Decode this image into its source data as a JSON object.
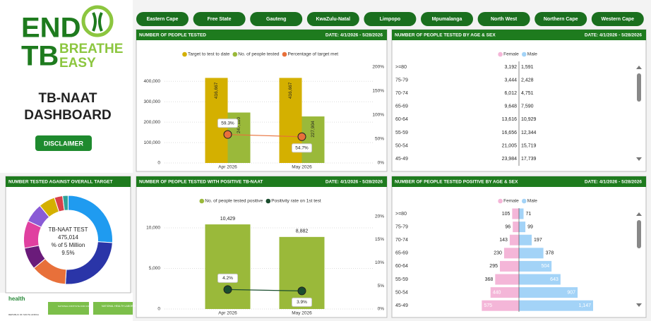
{
  "logo": {
    "line1": "END",
    "line2": "TB",
    "tag1": "BREATHE",
    "tag2": "EASY"
  },
  "dashboard_title": [
    "TB-NAAT",
    "DASHBOARD"
  ],
  "disclaimer": "DISCLAIMER",
  "provinces": [
    "Eastern Cape",
    "Free State",
    "Gauteng",
    "KwaZulu-Natal",
    "Limpopo",
    "Mpumalanga",
    "North West",
    "Northern Cape",
    "Western Cape"
  ],
  "footer_logos": [
    "health",
    "REPUBLIC OF SOUTH AFRICA",
    "NATIONAL INSTITUTE FOR COMMUNICABLE DISEASES",
    "NATIONAL HEALTH LABORATORY SERVICE"
  ],
  "chart_data": [
    {
      "type": "combo",
      "title": "NUMBER OF PEOPLE TESTED",
      "date": "DATE: 4/1/2026 - 5/28/2026",
      "categories": [
        "Apr 2026",
        "May 2026"
      ],
      "series": [
        {
          "name": "Target to test to date",
          "color": "#d4b000",
          "values": [
            416667,
            416667
          ],
          "value_labels": [
            "416,667",
            "416,667"
          ]
        },
        {
          "name": "No. of people tested",
          "color": "#9ab93a",
          "values": [
            247110,
            227904
          ],
          "value_labels": [
            "247,110",
            "227,904"
          ]
        },
        {
          "name": "Percentage of target met",
          "color": "#e8703a",
          "axis": "y2",
          "values": [
            59.3,
            54.7
          ],
          "value_labels": [
            "59.3%",
            "54.7%"
          ]
        }
      ],
      "ylim": [
        0,
        470000
      ],
      "yticks": [
        0,
        {
          "value": 100000,
          "label": "100,000"
        },
        {
          "value": 200000,
          "label": "200,000"
        },
        {
          "value": 300000,
          "label": "300,000"
        },
        {
          "value": 400000,
          "label": "400,000"
        }
      ],
      "y2lim": [
        0,
        200
      ],
      "y2ticks": [
        {
          "value": 0,
          "label": "0%"
        },
        {
          "value": 50,
          "label": "50%"
        },
        {
          "value": 100,
          "label": "100%"
        },
        {
          "value": 150,
          "label": "150%"
        },
        {
          "value": 200,
          "label": "200%"
        }
      ],
      "grid": true
    },
    {
      "type": "pyramid",
      "title": "NUMBER OF PEOPLE TESTED BY AGE & SEX",
      "date": "DATE: 4/1/2026 - 5/28/2026",
      "categories": [
        ">=80",
        "75-79",
        "70-74",
        "65-69",
        "60-64",
        "55-59",
        "50-54",
        "45-49"
      ],
      "series": [
        {
          "name": "Female",
          "color": "#f4b6d8",
          "values": [
            3192,
            3444,
            6012,
            9648,
            13616,
            16656,
            21005,
            23984
          ],
          "value_labels": [
            "3,192",
            "3,444",
            "6,012",
            "9,648",
            "13,616",
            "16,656",
            "21,005",
            "23,984"
          ]
        },
        {
          "name": "Male",
          "color": "#a3d3f7",
          "values": [
            1591,
            2428,
            4751,
            7590,
            10929,
            12344,
            15719,
            17739
          ],
          "value_labels": [
            "1,591",
            "2,428",
            "4,751",
            "7,590",
            "10,929",
            "12,344",
            "15,719",
            "17,739"
          ]
        }
      ]
    },
    {
      "type": "donut",
      "title": "NUMBER TESTED AGAINST OVERALL TARGET",
      "categories": [
        null,
        null,
        null,
        null,
        null,
        null,
        null,
        null,
        null
      ],
      "values": [
        26,
        25,
        13,
        8,
        10,
        7,
        6,
        3,
        2
      ],
      "colors": [
        "#1f9bf0",
        "#2a35a8",
        "#e8703a",
        "#6a1b7a",
        "#e040a0",
        "#8a5bd6",
        "#d4b000",
        "#d9404a",
        "#2fa39a"
      ],
      "center_labels": [
        "TB-NAAT TEST",
        "475,014",
        "% of 5 Million",
        "9.5%"
      ]
    },
    {
      "type": "combo",
      "title": "NUMBER OF PEOPLE TESTED WITH POSITIVE TB-NAAT",
      "date": "DATE: 4/1/2026 - 5/28/2026",
      "categories": [
        "Apr 2026",
        "May 2026"
      ],
      "series": [
        {
          "name": "No. of people tested positive",
          "color": "#9ab93a",
          "values": [
            10429,
            8882
          ],
          "value_labels": [
            "10,429",
            "8,882"
          ]
        },
        {
          "name": "Positivity rate on 1st test",
          "color": "#1a4d2e",
          "axis": "y2",
          "values": [
            4.2,
            3.9
          ],
          "value_labels": [
            "4.2%",
            "3.9%"
          ]
        }
      ],
      "ylim": [
        0,
        12000
      ],
      "yticks": [
        0,
        {
          "value": 5000,
          "label": "5,000"
        },
        {
          "value": 10000,
          "label": "10,000"
        }
      ],
      "y2lim": [
        0,
        21
      ],
      "y2ticks": [
        {
          "value": 0,
          "label": "0%"
        },
        {
          "value": 5,
          "label": "5%"
        },
        {
          "value": 10,
          "label": "10%"
        },
        {
          "value": 15,
          "label": "15%"
        },
        {
          "value": 20,
          "label": "20%"
        }
      ],
      "grid": true
    },
    {
      "type": "pyramid",
      "title": "NUMBER OF PEOPLE TESTED POSITIVE BY AGE & SEX",
      "date": "DATE: 4/1/2026 - 5/28/2026",
      "categories": [
        ">=80",
        "75-79",
        "70-74",
        "65-69",
        "60-64",
        "55-59",
        "50-54",
        "45-49"
      ],
      "series": [
        {
          "name": "Female",
          "color": "#f4b6d8",
          "values": [
            105,
            96,
            143,
            230,
            295,
            368,
            440,
            575
          ],
          "value_labels": [
            "105",
            "96",
            "143",
            "230",
            "295",
            "368",
            "440",
            "575"
          ]
        },
        {
          "name": "Male",
          "color": "#a3d3f7",
          "values": [
            71,
            99,
            197,
            378,
            504,
            643,
            907,
            1147
          ],
          "value_labels": [
            "71",
            "99",
            "197",
            "378",
            "504",
            "643",
            "907",
            "1,147"
          ]
        }
      ]
    }
  ]
}
